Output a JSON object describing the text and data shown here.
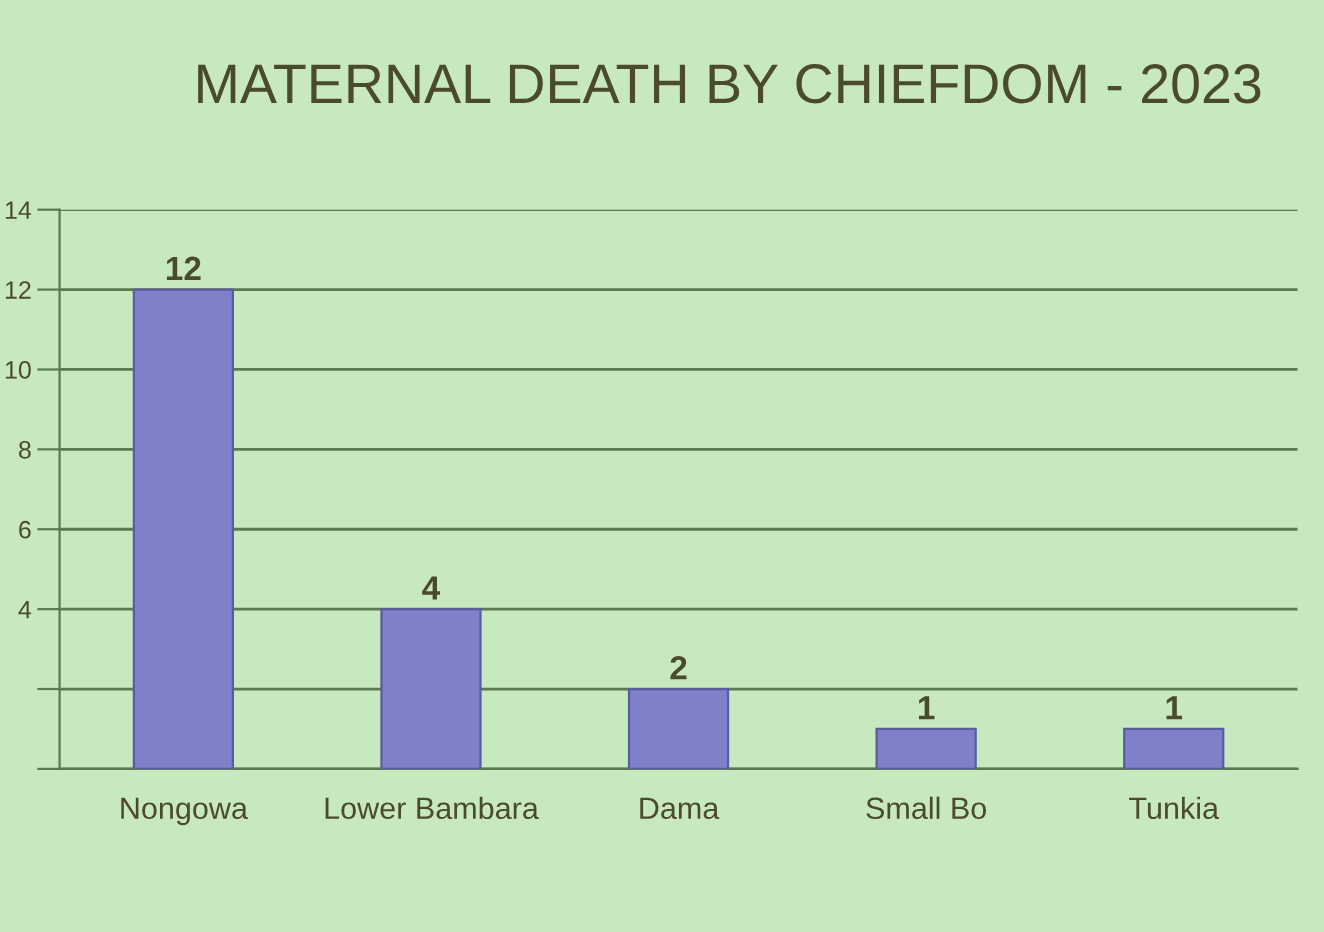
{
  "chart_data": {
    "type": "bar",
    "title": "MATERNAL DEATH BY CHIEFDOM - 2023",
    "categories": [
      "Nongowa",
      "Lower Bambara",
      "Dama",
      "Small Bo",
      "Tunkia"
    ],
    "values": [
      12,
      4,
      2,
      1,
      1
    ],
    "color": "#7f80c9",
    "ylim": [
      0,
      14
    ],
    "yticks": [
      {
        "value": 0,
        "label": null
      },
      {
        "value": 2,
        "label": null
      },
      4,
      6,
      8,
      10,
      12,
      14
    ],
    "grid": "y",
    "data_labels": true
  }
}
